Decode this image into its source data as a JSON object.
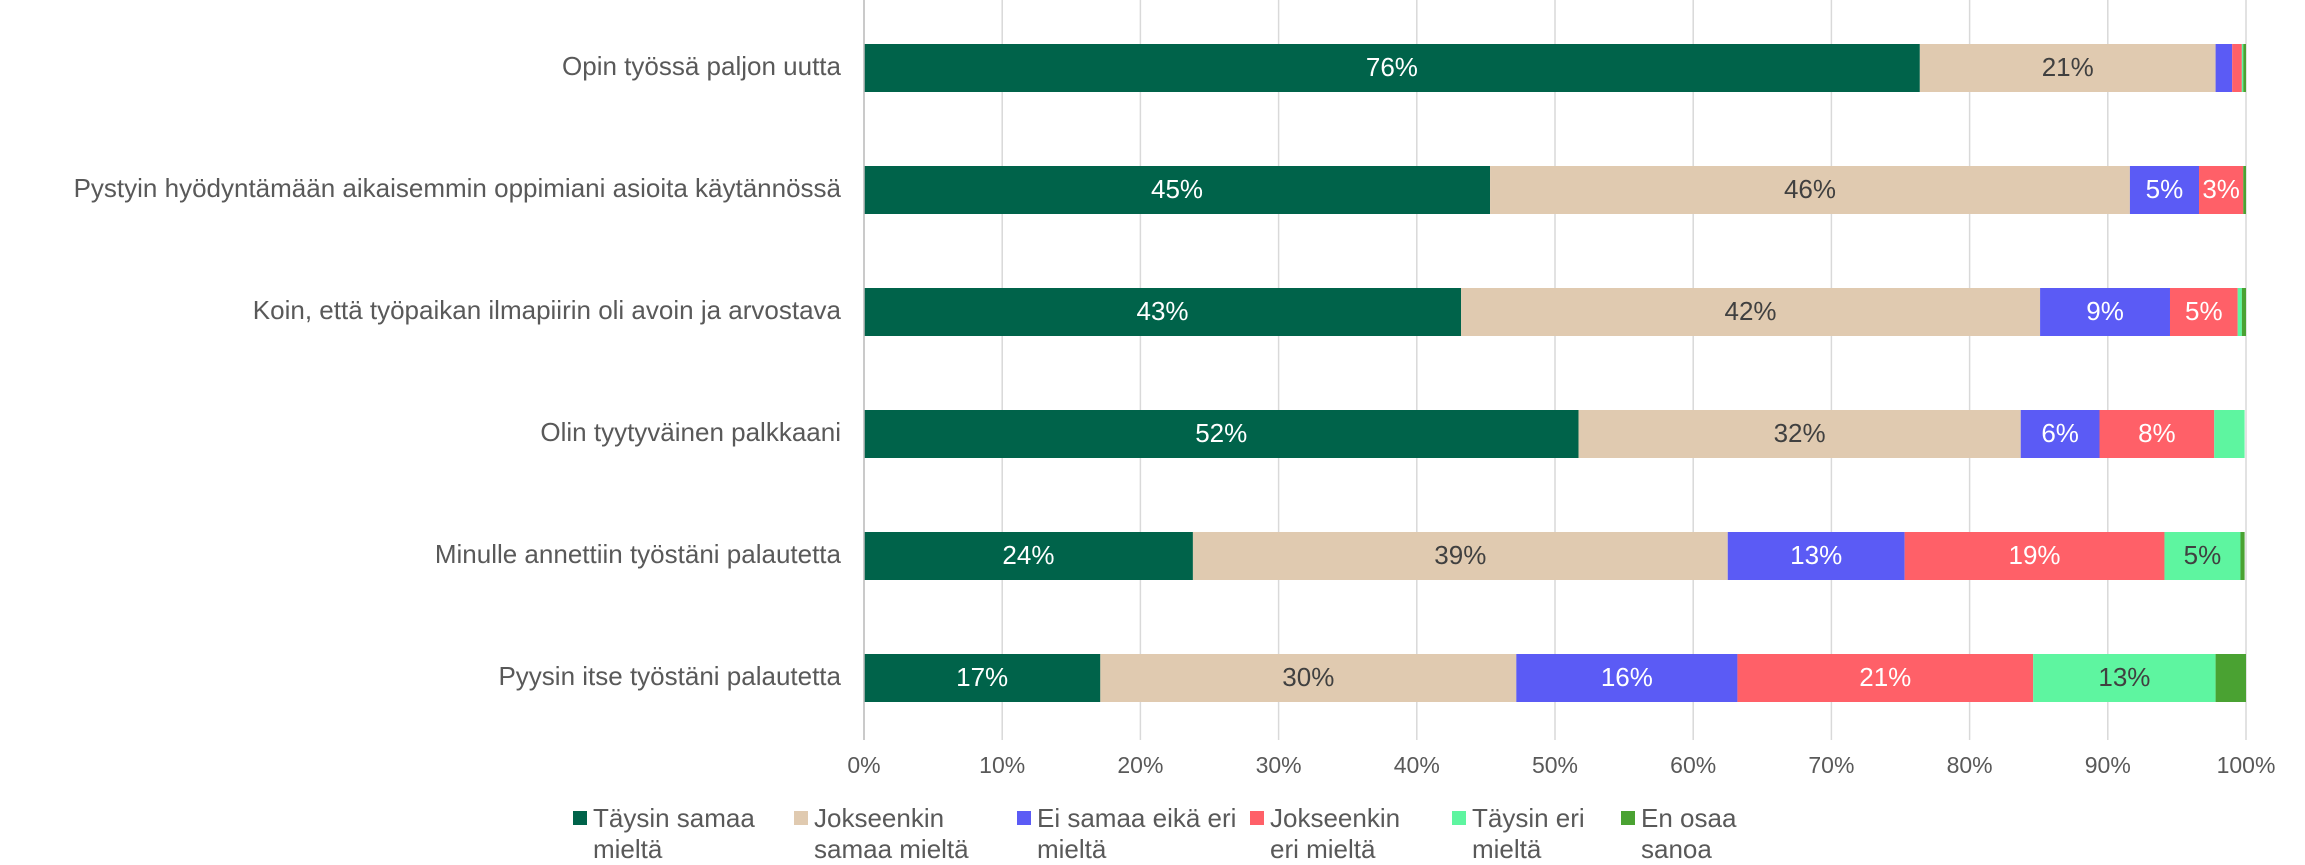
{
  "chart_data": {
    "type": "stacked_barh",
    "categories": [
      "Opin työssä paljon uutta",
      "Pystyin hyödyntämään aikaisemmin oppimiani asioita käytännössä",
      "Koin, että työpaikan ilmapiirin oli avoin ja arvostava",
      "Olin tyytyväinen palkkaani",
      "Minulle annettiin työstäni palautetta",
      "Pyysin itse työstäni palautetta"
    ],
    "series": [
      {
        "name": "Täysin samaa mieltä",
        "color": "#00634a",
        "values": [
          76.4,
          45.3,
          43.2,
          51.7,
          23.8,
          17.1
        ],
        "value_labels": [
          "76%",
          "45%",
          "43%",
          "52%",
          "24%",
          "17%"
        ]
      },
      {
        "name": "Jokseenkin samaa mieltä",
        "color": "#e0cab0",
        "values": [
          21.4,
          46.3,
          41.9,
          32.0,
          38.7,
          30.1
        ],
        "value_labels": [
          "21%",
          "46%",
          "42%",
          "32%",
          "39%",
          "30%"
        ]
      },
      {
        "name": "Ei samaa eikä eri mieltä",
        "color": "#5b5bf5",
        "values": [
          1.2,
          5.0,
          9.4,
          5.7,
          12.8,
          16.0
        ],
        "value_labels": [
          null,
          "5%",
          "9%",
          "6%",
          "13%",
          "16%"
        ]
      },
      {
        "name": "Jokseenkin eri mieltä",
        "color": "#ff6068",
        "values": [
          0.7,
          3.2,
          4.9,
          8.3,
          18.8,
          21.4
        ],
        "value_labels": [
          null,
          "3%",
          "5%",
          "8%",
          "19%",
          "21%"
        ]
      },
      {
        "name": "Täysin eri mieltä",
        "color": "#5ef5a0",
        "values": [
          0.1,
          0,
          0.3,
          2.2,
          5.5,
          13.2
        ],
        "value_labels": [
          null,
          null,
          null,
          null,
          "5%",
          "13%"
        ]
      },
      {
        "name": "En osaa sanoa",
        "color": "#4aa232",
        "values": [
          0.2,
          0.2,
          0.3,
          0,
          0.3,
          2.2
        ],
        "value_labels": [
          null,
          null,
          null,
          null,
          null,
          null
        ]
      }
    ],
    "xlim": [
      0,
      100
    ],
    "xticks": [
      {
        "value": 0,
        "label": "0%"
      },
      {
        "value": 10,
        "label": "10%"
      },
      {
        "value": 20,
        "label": "20%"
      },
      {
        "value": 30,
        "label": "30%"
      },
      {
        "value": 40,
        "label": "40%"
      },
      {
        "value": 50,
        "label": "50%"
      },
      {
        "value": 60,
        "label": "60%"
      },
      {
        "value": 70,
        "label": "70%"
      },
      {
        "value": 80,
        "label": "80%"
      },
      {
        "value": 90,
        "label": "90%"
      },
      {
        "value": 100,
        "label": "100%"
      }
    ],
    "grid": true,
    "legend": "bottom"
  }
}
